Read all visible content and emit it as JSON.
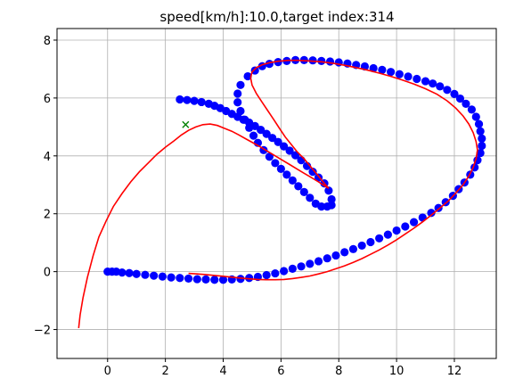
{
  "chart_data": {
    "type": "line",
    "title": "speed[km/h]:10.0,target index:314",
    "xlabel": "",
    "ylabel": "",
    "xlim": [
      -1.75,
      13.45
    ],
    "ylim": [
      -3.0,
      8.4
    ],
    "x_ticks": [
      0,
      2,
      4,
      6,
      8,
      10,
      12
    ],
    "y_ticks": [
      -2,
      0,
      2,
      4,
      6,
      8
    ],
    "grid": true,
    "colors": {
      "course": "#0000ff",
      "trajectory": "#ff0000",
      "target": "#008000"
    },
    "series": [
      {
        "style": "markers",
        "color": "#0000ff",
        "x": [
          0.0,
          0.15,
          0.3,
          0.5,
          0.75,
          1.0,
          1.3,
          1.6,
          1.9,
          2.2,
          2.5,
          2.8,
          3.1,
          3.4,
          3.7,
          4.0,
          4.3,
          4.6,
          4.9,
          5.2,
          5.5,
          5.8,
          6.1,
          6.4,
          6.7,
          7.0,
          7.3,
          7.6,
          7.9,
          8.2,
          8.5,
          8.8,
          9.1,
          9.4,
          9.7,
          10.0,
          10.3,
          10.6,
          10.9,
          11.2,
          11.45,
          11.7,
          11.95,
          12.15,
          12.35,
          12.55,
          12.7,
          12.8,
          12.9,
          12.95,
          12.95,
          12.9,
          12.85,
          12.75,
          12.6,
          12.4,
          12.2,
          12.0,
          11.75,
          11.5,
          11.25,
          11.0,
          10.7,
          10.4,
          10.1,
          9.8,
          9.5,
          9.2,
          8.9,
          8.6,
          8.3,
          8.0,
          7.7,
          7.4,
          7.1,
          6.8,
          6.5,
          6.2,
          5.9,
          5.6,
          5.35,
          5.1,
          4.85,
          4.6,
          4.5,
          4.5,
          4.6,
          4.75,
          4.9,
          5.05,
          5.2,
          5.4,
          5.6,
          5.8,
          6.0,
          6.2,
          6.4,
          6.6,
          6.8,
          7.0,
          7.2,
          7.4,
          7.6,
          7.75,
          7.75,
          7.65,
          7.5,
          7.3,
          7.1,
          6.9,
          6.7,
          6.5,
          6.3,
          6.1,
          5.9,
          5.7,
          5.5,
          5.3,
          5.1,
          4.9,
          4.7,
          4.5,
          4.3,
          4.1,
          3.9,
          3.7,
          3.5,
          3.25,
          3.0,
          2.75,
          2.5
        ],
        "y": [
          0.0,
          0.0,
          0.0,
          -0.03,
          -0.05,
          -0.08,
          -0.11,
          -0.14,
          -0.17,
          -0.2,
          -0.22,
          -0.24,
          -0.26,
          -0.27,
          -0.28,
          -0.28,
          -0.27,
          -0.25,
          -0.22,
          -0.18,
          -0.12,
          -0.06,
          0.02,
          0.1,
          0.18,
          0.27,
          0.36,
          0.46,
          0.56,
          0.67,
          0.78,
          0.9,
          1.02,
          1.15,
          1.28,
          1.42,
          1.56,
          1.71,
          1.87,
          2.03,
          2.2,
          2.4,
          2.62,
          2.85,
          3.08,
          3.35,
          3.6,
          3.85,
          4.1,
          4.35,
          4.6,
          4.85,
          5.1,
          5.35,
          5.6,
          5.8,
          5.98,
          6.14,
          6.28,
          6.4,
          6.5,
          6.58,
          6.66,
          6.74,
          6.82,
          6.9,
          6.97,
          7.03,
          7.09,
          7.14,
          7.19,
          7.23,
          7.26,
          7.28,
          7.3,
          7.31,
          7.31,
          7.28,
          7.24,
          7.18,
          7.1,
          6.95,
          6.75,
          6.45,
          6.15,
          5.85,
          5.55,
          5.25,
          4.97,
          4.7,
          4.45,
          4.2,
          3.97,
          3.75,
          3.55,
          3.35,
          3.15,
          2.95,
          2.75,
          2.55,
          2.35,
          2.25,
          2.25,
          2.3,
          2.5,
          2.8,
          3.05,
          3.25,
          3.45,
          3.65,
          3.85,
          4.02,
          4.18,
          4.33,
          4.48,
          4.62,
          4.76,
          4.9,
          5.03,
          5.15,
          5.25,
          5.35,
          5.45,
          5.55,
          5.65,
          5.73,
          5.8,
          5.86,
          5.9,
          5.93,
          5.95
        ]
      },
      {
        "style": "line",
        "color": "#ff0000",
        "x": [
          -1.0,
          -0.95,
          -0.85,
          -0.7,
          -0.5,
          -0.3,
          -0.05,
          0.2,
          0.5,
          0.8,
          1.1,
          1.4,
          1.7,
          2.0,
          2.3,
          2.55,
          2.8,
          3.05,
          3.3,
          3.55,
          3.8,
          4.05,
          4.3,
          4.55,
          4.8,
          5.05,
          5.3,
          5.55,
          5.8,
          6.05,
          6.3,
          6.55,
          6.8,
          7.05,
          7.3,
          7.5,
          7.65,
          7.5,
          7.3,
          7.05,
          6.8,
          6.55,
          6.35,
          6.15,
          5.95,
          5.75,
          5.55,
          5.35,
          5.15,
          5.0,
          4.95,
          5.0,
          5.15,
          5.35,
          5.6,
          5.9,
          6.25,
          6.6,
          7.0,
          7.4,
          7.8,
          8.2,
          8.6,
          9.0,
          9.4,
          9.8,
          10.2,
          10.6,
          11.0,
          11.4,
          11.75,
          12.05,
          12.3,
          12.5,
          12.65,
          12.75,
          12.8,
          12.75,
          12.65,
          12.5,
          12.3,
          12.05,
          11.8,
          11.5,
          11.2,
          10.9,
          10.6,
          10.3,
          10.0,
          9.7,
          9.4,
          9.1,
          8.8,
          8.5,
          8.2,
          7.9,
          7.6,
          7.3,
          7.0,
          6.7,
          6.4,
          6.1,
          5.8,
          5.5,
          5.2,
          4.9,
          4.6,
          4.3,
          4.0,
          3.7,
          3.4,
          3.1,
          2.8
        ],
        "y": [
          -1.95,
          -1.5,
          -0.9,
          -0.2,
          0.55,
          1.2,
          1.75,
          2.25,
          2.7,
          3.1,
          3.45,
          3.75,
          4.05,
          4.3,
          4.52,
          4.72,
          4.88,
          5.0,
          5.08,
          5.1,
          5.05,
          4.95,
          4.85,
          4.72,
          4.58,
          4.44,
          4.3,
          4.15,
          4.0,
          3.85,
          3.7,
          3.55,
          3.4,
          3.25,
          3.1,
          2.97,
          2.88,
          3.05,
          3.3,
          3.6,
          3.9,
          4.15,
          4.4,
          4.65,
          4.95,
          5.25,
          5.55,
          5.85,
          6.15,
          6.45,
          6.7,
          6.9,
          7.05,
          7.15,
          7.22,
          7.27,
          7.3,
          7.3,
          7.28,
          7.25,
          7.2,
          7.13,
          7.05,
          6.96,
          6.86,
          6.75,
          6.62,
          6.48,
          6.32,
          6.13,
          5.9,
          5.65,
          5.38,
          5.1,
          4.8,
          4.5,
          4.2,
          3.9,
          3.6,
          3.3,
          3.0,
          2.72,
          2.45,
          2.2,
          1.95,
          1.72,
          1.5,
          1.3,
          1.1,
          0.92,
          0.75,
          0.6,
          0.45,
          0.32,
          0.2,
          0.1,
          0.0,
          -0.08,
          -0.15,
          -0.2,
          -0.24,
          -0.27,
          -0.28,
          -0.28,
          -0.27,
          -0.25,
          -0.22,
          -0.19,
          -0.16,
          -0.13,
          -0.1,
          -0.08,
          -0.06
        ]
      },
      {
        "style": "x-marker",
        "color": "#008000",
        "x": [
          2.7
        ],
        "y": [
          5.08
        ]
      }
    ]
  }
}
